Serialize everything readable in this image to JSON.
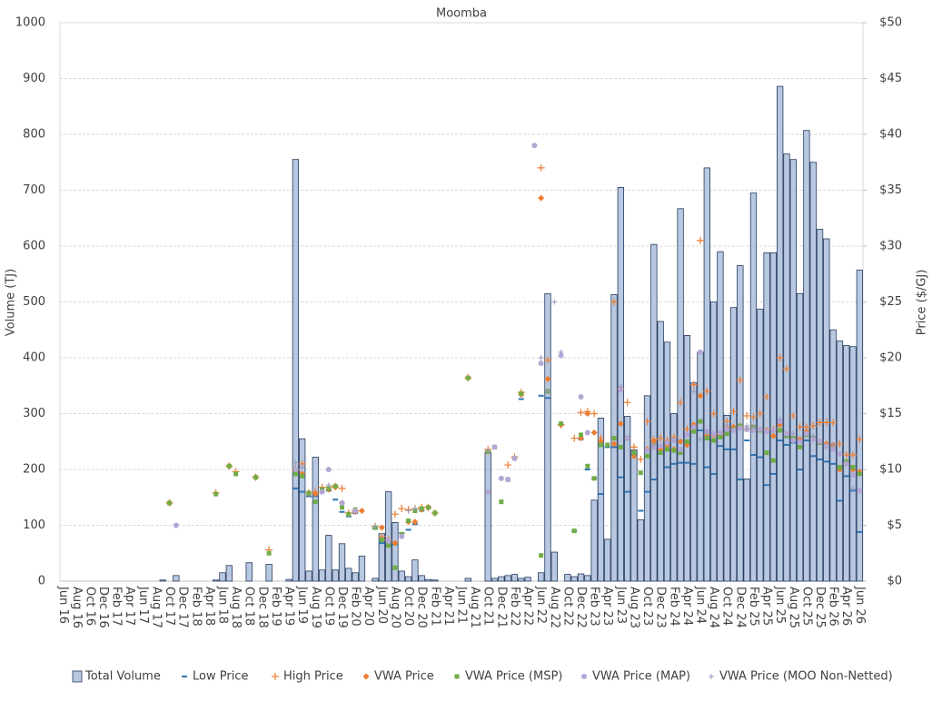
{
  "chart_data": {
    "type": "bar",
    "title": "Moomba",
    "y_label": "Volume (TJ)",
    "y2_label": "Price ($/GJ)",
    "categories": [
      "Jun 16",
      null,
      "Aug 16",
      null,
      "Oct 16",
      null,
      "Dec 16",
      null,
      "Feb 17",
      null,
      "Apr 17",
      null,
      "Jun 17",
      null,
      "Aug 17",
      null,
      "Oct 17",
      null,
      "Dec 17",
      null,
      "Feb 18",
      null,
      "Apr 18",
      null,
      "Jun 18",
      null,
      "Aug 18",
      null,
      "Oct 18",
      null,
      "Dec 18",
      null,
      "Feb 19",
      null,
      "Apr 19",
      null,
      "Jun 19",
      null,
      "Aug 19",
      null,
      "Oct 19",
      null,
      "Dec 19",
      null,
      "Feb 20",
      null,
      "Apr 20",
      null,
      "Jun 20",
      null,
      "Aug 20",
      null,
      "Oct 20",
      null,
      "Dec 20",
      null,
      "Feb 21",
      null,
      "Apr 21",
      null,
      "Jun 21",
      null,
      "Aug 21",
      null,
      "Oct 21",
      null,
      "Dec 21",
      null,
      "Feb 22",
      null,
      "Apr 22",
      null,
      "Jun 22",
      null,
      "Aug 22",
      null,
      "Oct 22",
      null,
      "Dec 22",
      null,
      "Feb 23",
      null,
      "Apr 23",
      null,
      "Jun 23",
      null,
      "Aug 23",
      null,
      "Oct 23",
      null,
      "Dec 23",
      null,
      "Feb 24",
      null,
      "Apr 24",
      null,
      "Jun 24",
      null,
      "Aug 24",
      null,
      "Oct 24",
      null,
      "Dec 24",
      null,
      "Feb 25",
      null,
      "Apr 25",
      null,
      "Jun 25",
      null,
      "Aug 25",
      null,
      "Oct 25",
      null,
      "Dec 25",
      null,
      "Feb 26",
      null,
      "Apr 26",
      null,
      "Jun 26"
    ],
    "ylim": [
      0,
      1000
    ],
    "yticks": [
      0,
      100,
      200,
      300,
      400,
      500,
      600,
      700,
      800,
      900,
      1000
    ],
    "y2lim": [
      0,
      50
    ],
    "y2ticks": [
      {
        "value": 0,
        "label": "$0"
      },
      {
        "value": 5,
        "label": "$5"
      },
      {
        "value": 10,
        "label": "$10"
      },
      {
        "value": 15,
        "label": "$15"
      },
      {
        "value": 20,
        "label": "$20"
      },
      {
        "value": 25,
        "label": "$25"
      },
      {
        "value": 30,
        "label": "$30"
      },
      {
        "value": 35,
        "label": "$35"
      },
      {
        "value": 40,
        "label": "$40"
      },
      {
        "value": 45,
        "label": "$45"
      },
      {
        "value": 50,
        "label": "$50"
      }
    ],
    "grid": true,
    "legend": "bottom",
    "series": [
      {
        "name": "Total Volume",
        "color": "#b8c8e0",
        "marker": "bar",
        "values": [
          0,
          0,
          0,
          0,
          0,
          0,
          0,
          0,
          0,
          0,
          0,
          0,
          0,
          0,
          0,
          2,
          0,
          10,
          0,
          0,
          0,
          0,
          0,
          2,
          15,
          28,
          0,
          0,
          33,
          0,
          0,
          30,
          0,
          0,
          3,
          755,
          255,
          18,
          222,
          20,
          82,
          20,
          67,
          23,
          15,
          45,
          0,
          5,
          85,
          160,
          105,
          18,
          8,
          38,
          10,
          3,
          2,
          0,
          0,
          0,
          0,
          5,
          0,
          0,
          230,
          5,
          8,
          10,
          12,
          5,
          7,
          0,
          15,
          515,
          52,
          0,
          12,
          8,
          13,
          10,
          145,
          292,
          75,
          513,
          705,
          295,
          235,
          110,
          332,
          603,
          465,
          428,
          300,
          667,
          440,
          355,
          410,
          740,
          500,
          590,
          297,
          490,
          565,
          183,
          695,
          487,
          588,
          588,
          886,
          765,
          755,
          515,
          807,
          750,
          630,
          613,
          450,
          430,
          422,
          420,
          557
        ]
      },
      {
        "name": "Low Price",
        "color": "#2e75b6",
        "marker": "dash",
        "axis": "y2",
        "values": [
          null,
          null,
          null,
          null,
          null,
          null,
          null,
          null,
          null,
          null,
          null,
          null,
          null,
          null,
          null,
          null,
          null,
          null,
          null,
          null,
          null,
          null,
          null,
          null,
          null,
          null,
          null,
          null,
          null,
          null,
          null,
          null,
          null,
          null,
          null,
          8.3,
          8,
          7.6,
          7.6,
          8,
          8.1,
          7.3,
          6.2,
          5.8,
          6.1,
          null,
          null,
          4.7,
          3.4,
          3.2,
          3.3,
          4.3,
          4.6,
          5.1,
          6.3,
          null,
          null,
          null,
          null,
          null,
          null,
          null,
          null,
          null,
          11.6,
          null,
          null,
          null,
          null,
          16.3,
          null,
          null,
          16.6,
          16.4,
          null,
          14,
          null,
          4.5,
          12.7,
          10,
          9.2,
          7.8,
          12,
          12,
          9.3,
          8,
          11.3,
          6.3,
          8,
          9.1,
          11.5,
          10.2,
          10.5,
          10.6,
          10.6,
          10.5,
          13.5,
          10.2,
          9.6,
          12.1,
          11.8,
          11.8,
          9.1,
          12.6,
          11.3,
          11.1,
          8.6,
          9.6,
          12.6,
          12.2,
          12.4,
          10,
          12.6,
          11.2,
          10.9,
          10.7,
          10.5,
          7.2,
          9.4,
          8.1,
          4.4
        ]
      },
      {
        "name": "High Price",
        "color": "#ed7d31",
        "marker": "plus",
        "axis": "y2",
        "values": [
          null,
          null,
          null,
          null,
          null,
          null,
          null,
          null,
          null,
          null,
          null,
          null,
          null,
          null,
          null,
          null,
          7,
          null,
          null,
          null,
          null,
          null,
          null,
          7.9,
          null,
          10.3,
          9.8,
          null,
          null,
          9.3,
          null,
          2.8,
          null,
          null,
          null,
          10,
          10.5,
          7.9,
          8,
          8.4,
          8.4,
          8.5,
          8.3,
          6.1,
          6.3,
          null,
          null,
          4.9,
          4,
          3.7,
          6,
          6.5,
          6.4,
          6.5,
          6.6,
          6.6,
          6.1,
          null,
          null,
          null,
          null,
          18.2,
          null,
          null,
          11.8,
          null,
          null,
          10.4,
          11.1,
          16.9,
          null,
          null,
          37,
          19.8,
          null,
          14,
          null,
          12.8,
          15.1,
          15.2,
          15,
          12.8,
          null,
          25,
          17.2,
          16,
          12,
          10.9,
          14.3,
          12.7,
          12.8,
          12.6,
          12.9,
          16,
          13.6,
          17.6,
          30.5,
          17,
          15,
          13.2,
          14.3,
          15.2,
          18,
          14.8,
          14.7,
          15,
          16.5,
          13.6,
          20,
          19,
          14.8,
          13.8,
          13.8,
          13.9,
          14.2,
          14.2,
          14.2,
          12.3,
          11.3,
          11.3,
          12.7
        ]
      },
      {
        "name": "VWA Price",
        "color": "#ed7d31",
        "marker": "diamond",
        "axis": "y2",
        "values": [
          null,
          null,
          null,
          null,
          null,
          null,
          null,
          null,
          null,
          null,
          null,
          null,
          null,
          null,
          null,
          null,
          7,
          null,
          null,
          null,
          null,
          null,
          null,
          null,
          null,
          10.3,
          null,
          null,
          null,
          9.3,
          null,
          null,
          null,
          null,
          null,
          9.8,
          9.6,
          null,
          7.8,
          null,
          8.2,
          8.4,
          7,
          null,
          6.2,
          6.3,
          null,
          null,
          4.8,
          3.6,
          3.4,
          null,
          5.3,
          5.3,
          6.4,
          6.6,
          null,
          null,
          null,
          null,
          null,
          18.2,
          null,
          null,
          11.6,
          null,
          null,
          null,
          null,
          16.7,
          null,
          null,
          34.3,
          18.1,
          null,
          14,
          null,
          null,
          12.8,
          15,
          13.3,
          12.5,
          null,
          12.3,
          14.1,
          12.8,
          11.2,
          null,
          11.8,
          12.5,
          11.8,
          12.2,
          11.8,
          12.5,
          12.2,
          14,
          16.6,
          13,
          13.1,
          13,
          13.7,
          13.8,
          13.9,
          13.6,
          13.8,
          13.6,
          13.5,
          13,
          14,
          13.2,
          12.8,
          12.7,
          13.4,
          12.7,
          12.5,
          12.3,
          12.2,
          10,
          10.5,
          10,
          9.8
        ]
      },
      {
        "name": "VWA Price (MSP)",
        "color": "#70ad47",
        "marker": "square",
        "axis": "y2",
        "values": [
          null,
          null,
          null,
          null,
          null,
          null,
          null,
          null,
          null,
          null,
          null,
          null,
          null,
          null,
          null,
          null,
          7,
          null,
          null,
          null,
          null,
          null,
          null,
          7.8,
          null,
          10.3,
          9.6,
          null,
          null,
          9.3,
          null,
          2.5,
          null,
          null,
          null,
          9.6,
          9.4,
          7.9,
          7.1,
          8.2,
          8.3,
          8.5,
          6.6,
          6,
          6.4,
          null,
          null,
          4.8,
          3.7,
          3.2,
          1.2,
          4.2,
          5.4,
          6.3,
          6.5,
          6.6,
          6.1,
          null,
          null,
          null,
          null,
          18.2,
          null,
          null,
          11.6,
          12,
          7.1,
          9.1,
          11,
          16.8,
          null,
          null,
          2.3,
          17,
          null,
          14.1,
          null,
          4.5,
          13.1,
          10.3,
          9.2,
          12.2,
          12.2,
          12.8,
          12,
          12.8,
          11.5,
          9.7,
          11.2,
          12.1,
          11.5,
          11.8,
          11.7,
          11.5,
          12.5,
          13.4,
          14.3,
          12.8,
          12.6,
          12.9,
          13.2,
          13.6,
          13.9,
          13.6,
          13.8,
          13.5,
          11.5,
          10.8,
          13.5,
          13,
          12.8,
          12,
          13.1,
          12.8,
          12.4,
          12.1,
          11.8,
          10.2,
          10.7,
          10.2,
          9.6
        ]
      },
      {
        "name": "VWA Price (MAP)",
        "color": "#b4a7d6",
        "marker": "circle",
        "axis": "y2",
        "values": [
          null,
          null,
          null,
          null,
          null,
          null,
          null,
          null,
          null,
          null,
          null,
          null,
          null,
          null,
          null,
          null,
          null,
          5,
          null,
          null,
          null,
          null,
          null,
          null,
          null,
          null,
          null,
          null,
          null,
          null,
          null,
          null,
          null,
          null,
          null,
          10,
          null,
          null,
          null,
          8,
          10,
          null,
          7,
          null,
          6.3,
          null,
          null,
          null,
          null,
          3.6,
          null,
          4,
          null,
          null,
          null,
          null,
          null,
          null,
          null,
          null,
          null,
          null,
          null,
          null,
          8,
          12,
          9.2,
          9.1,
          11,
          null,
          null,
          39,
          19.5,
          null,
          null,
          20.2,
          null,
          null,
          16.5,
          13.3,
          null,
          null,
          null,
          null,
          17.1,
          12.8,
          null,
          null,
          11.7,
          12,
          12.1,
          12.4,
          12.6,
          11.8,
          13.1,
          13.8,
          20.5,
          13.4,
          13.2,
          13.3,
          13.6,
          13.5,
          13.7,
          13.6,
          13.5,
          13.6,
          13.4,
          13.5,
          14.3,
          13.2,
          12.6,
          12.5,
          13.2,
          12.7,
          12.5,
          12.1,
          11.8,
          11.4,
          10.5,
          9.5,
          8.1
        ]
      },
      {
        "name": "VWA Price (MOO Non-Netted)",
        "color": "#9a9ac4",
        "marker": "cross",
        "axis": "y2",
        "values": [
          null,
          null,
          null,
          null,
          null,
          null,
          null,
          null,
          null,
          null,
          null,
          null,
          null,
          null,
          null,
          null,
          null,
          null,
          null,
          null,
          null,
          null,
          null,
          null,
          null,
          null,
          null,
          null,
          null,
          null,
          null,
          null,
          null,
          null,
          null,
          10.6,
          10.2,
          null,
          null,
          null,
          8.6,
          null,
          null,
          null,
          null,
          null,
          null,
          4.9,
          null,
          null,
          null,
          null,
          6.3,
          6.5,
          null,
          null,
          null,
          null,
          null,
          null,
          null,
          null,
          null,
          null,
          11.7,
          null,
          null,
          null,
          null,
          null,
          null,
          null,
          20,
          17,
          25,
          20.5,
          null,
          null,
          null,
          null,
          null,
          null,
          null,
          null,
          17.4,
          null,
          null,
          null,
          null,
          12.2,
          null,
          null,
          null,
          null,
          null,
          17,
          12.7,
          13.3,
          null,
          null,
          14,
          null,
          null,
          13.9,
          13.8,
          null,
          null,
          null,
          14.5,
          null,
          13.2,
          null,
          null,
          13,
          null,
          null,
          12.2,
          null,
          null,
          8.3,
          null
        ]
      }
    ]
  }
}
